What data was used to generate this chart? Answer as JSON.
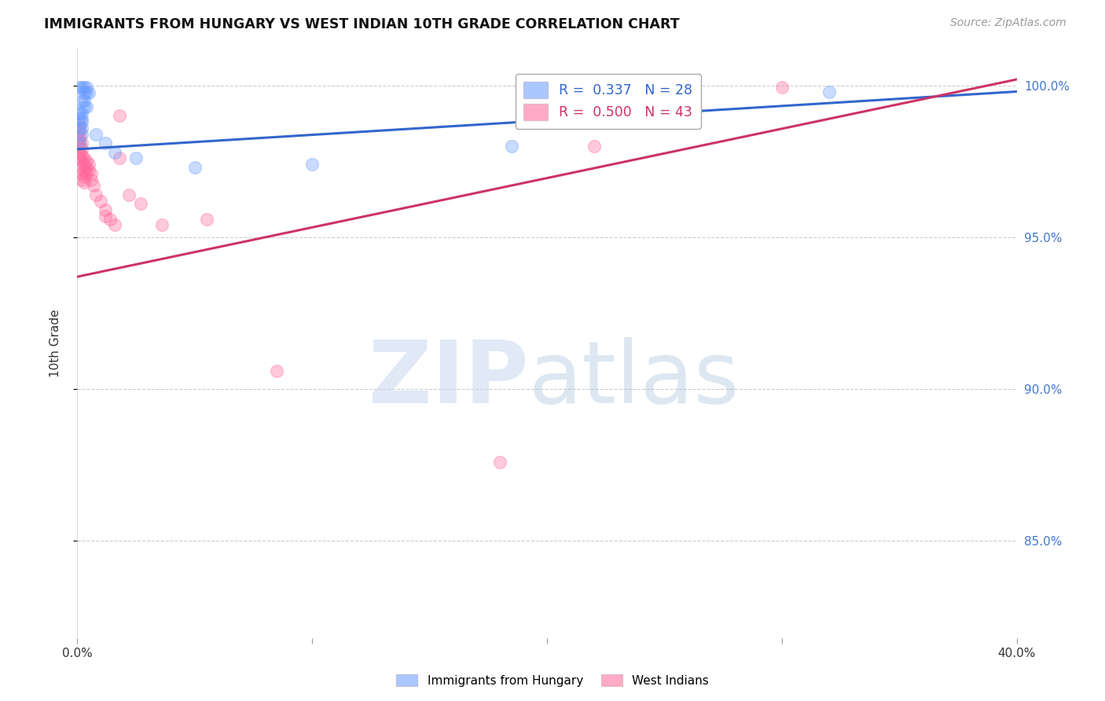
{
  "title": "IMMIGRANTS FROM HUNGARY VS WEST INDIAN 10TH GRADE CORRELATION CHART",
  "source": "Source: ZipAtlas.com",
  "ylabel": "10th Grade",
  "xlim": [
    0.0,
    0.4
  ],
  "ylim": [
    0.818,
    1.012
  ],
  "hungary_points": [
    [
      0.001,
      0.9995
    ],
    [
      0.002,
      0.9995
    ],
    [
      0.003,
      0.9995
    ],
    [
      0.004,
      0.9995
    ],
    [
      0.003,
      0.9975
    ],
    [
      0.004,
      0.9975
    ],
    [
      0.005,
      0.9975
    ],
    [
      0.002,
      0.995
    ],
    [
      0.003,
      0.995
    ],
    [
      0.003,
      0.993
    ],
    [
      0.004,
      0.993
    ],
    [
      0.001,
      0.991
    ],
    [
      0.002,
      0.991
    ],
    [
      0.001,
      0.989
    ],
    [
      0.002,
      0.989
    ],
    [
      0.002,
      0.988
    ],
    [
      0.001,
      0.986
    ],
    [
      0.002,
      0.986
    ],
    [
      0.002,
      0.984
    ],
    [
      0.008,
      0.984
    ],
    [
      0.001,
      0.981
    ],
    [
      0.012,
      0.981
    ],
    [
      0.016,
      0.978
    ],
    [
      0.025,
      0.976
    ],
    [
      0.05,
      0.973
    ],
    [
      0.1,
      0.974
    ],
    [
      0.185,
      0.98
    ],
    [
      0.32,
      0.998
    ]
  ],
  "westindian_points": [
    [
      0.001,
      0.987
    ],
    [
      0.001,
      0.985
    ],
    [
      0.001,
      0.983
    ],
    [
      0.001,
      0.982
    ],
    [
      0.001,
      0.98
    ],
    [
      0.001,
      0.978
    ],
    [
      0.001,
      0.976
    ],
    [
      0.002,
      0.981
    ],
    [
      0.002,
      0.979
    ],
    [
      0.002,
      0.977
    ],
    [
      0.002,
      0.975
    ],
    [
      0.002,
      0.973
    ],
    [
      0.002,
      0.971
    ],
    [
      0.002,
      0.969
    ],
    [
      0.003,
      0.976
    ],
    [
      0.003,
      0.974
    ],
    [
      0.003,
      0.972
    ],
    [
      0.003,
      0.97
    ],
    [
      0.003,
      0.968
    ],
    [
      0.004,
      0.975
    ],
    [
      0.004,
      0.973
    ],
    [
      0.004,
      0.971
    ],
    [
      0.005,
      0.974
    ],
    [
      0.005,
      0.972
    ],
    [
      0.006,
      0.971
    ],
    [
      0.006,
      0.969
    ],
    [
      0.007,
      0.967
    ],
    [
      0.008,
      0.964
    ],
    [
      0.01,
      0.962
    ],
    [
      0.012,
      0.959
    ],
    [
      0.012,
      0.957
    ],
    [
      0.014,
      0.956
    ],
    [
      0.016,
      0.954
    ],
    [
      0.018,
      0.99
    ],
    [
      0.018,
      0.976
    ],
    [
      0.022,
      0.964
    ],
    [
      0.027,
      0.961
    ],
    [
      0.036,
      0.954
    ],
    [
      0.055,
      0.956
    ],
    [
      0.085,
      0.906
    ],
    [
      0.18,
      0.876
    ],
    [
      0.22,
      0.98
    ],
    [
      0.3,
      0.9995
    ]
  ],
  "hungary_line": {
    "x0": 0.0,
    "y0": 0.979,
    "x1": 0.4,
    "y1": 0.998
  },
  "westindian_line": {
    "x0": 0.0,
    "y0": 0.937,
    "x1": 0.4,
    "y1": 1.002
  },
  "hungary_color": "#6699ff",
  "westindian_color": "#ff6699",
  "hungary_line_color": "#3366cc",
  "westindian_line_color": "#cc3366",
  "background_color": "#ffffff",
  "grid_color": "#cccccc",
  "marker_size": 130,
  "marker_alpha": 0.35
}
